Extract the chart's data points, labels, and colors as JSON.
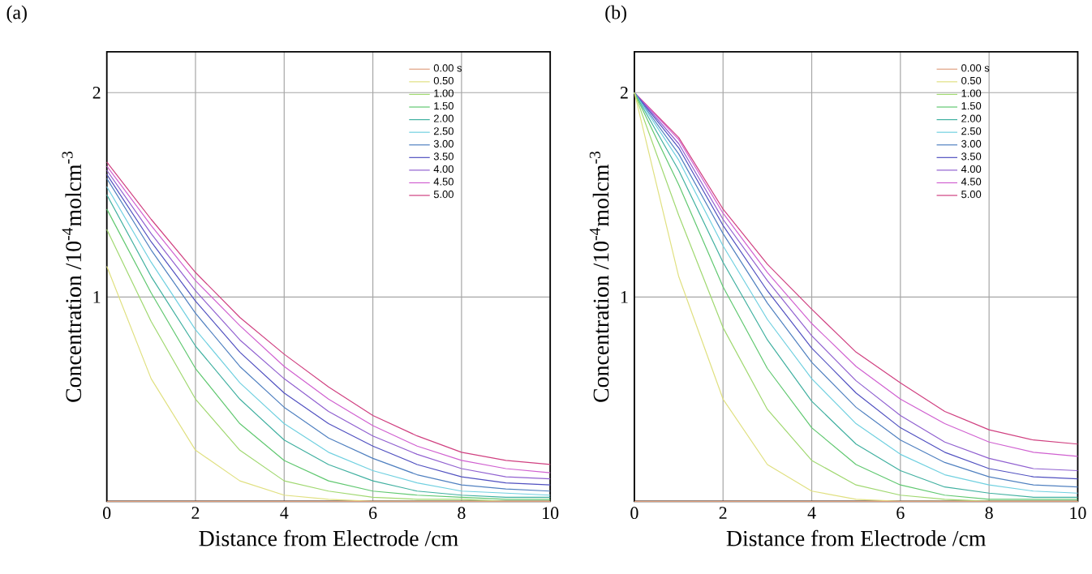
{
  "chart_data": [
    {
      "type": "line",
      "title": "(a)",
      "xlabel": "Distance from Electrode /cm",
      "ylabel": "Concentration /10$^{-4}$molcm$^{-3}$",
      "x": [
        0,
        1,
        2,
        3,
        4,
        5,
        6,
        7,
        8,
        9,
        10
      ],
      "xlim": [
        0,
        10
      ],
      "ylim": [
        0,
        2.2
      ],
      "xticks": [
        0,
        2,
        4,
        6,
        8,
        10
      ],
      "yticks": [
        1,
        2
      ],
      "grid": true,
      "legend": "top right",
      "marker": "none",
      "line_style": "solid",
      "series": [
        {
          "name": "0.00 s",
          "color": "#e0a080",
          "values": [
            0,
            0,
            0,
            0,
            0,
            0,
            0,
            0,
            0,
            0,
            0
          ]
        },
        {
          "name": "0.50",
          "color": "#e0e080",
          "values": [
            1.15,
            0.6,
            0.25,
            0.1,
            0.03,
            0.01,
            0,
            0,
            0,
            0,
            0
          ]
        },
        {
          "name": "1.00",
          "color": "#a0d870",
          "values": [
            1.33,
            0.88,
            0.5,
            0.25,
            0.1,
            0.05,
            0.02,
            0.01,
            0.01,
            0,
            0
          ]
        },
        {
          "name": "1.50",
          "color": "#60c870",
          "values": [
            1.43,
            1.02,
            0.65,
            0.38,
            0.2,
            0.1,
            0.05,
            0.03,
            0.02,
            0.01,
            0.01
          ]
        },
        {
          "name": "2.00",
          "color": "#40b0a0",
          "values": [
            1.5,
            1.1,
            0.76,
            0.5,
            0.3,
            0.18,
            0.1,
            0.05,
            0.03,
            0.02,
            0.02
          ]
        },
        {
          "name": "2.50",
          "color": "#70d0e0",
          "values": [
            1.54,
            1.17,
            0.84,
            0.58,
            0.38,
            0.24,
            0.15,
            0.09,
            0.05,
            0.04,
            0.03
          ]
        },
        {
          "name": "3.00",
          "color": "#5080c0",
          "values": [
            1.58,
            1.23,
            0.92,
            0.66,
            0.46,
            0.31,
            0.21,
            0.13,
            0.08,
            0.06,
            0.05
          ]
        },
        {
          "name": "3.50",
          "color": "#5050c0",
          "values": [
            1.6,
            1.27,
            0.98,
            0.73,
            0.53,
            0.38,
            0.27,
            0.18,
            0.12,
            0.09,
            0.08
          ]
        },
        {
          "name": "4.00",
          "color": "#9060d0",
          "values": [
            1.62,
            1.31,
            1.03,
            0.79,
            0.6,
            0.44,
            0.32,
            0.23,
            0.16,
            0.12,
            0.11
          ]
        },
        {
          "name": "4.50",
          "color": "#d060d0",
          "values": [
            1.64,
            1.35,
            1.08,
            0.86,
            0.66,
            0.5,
            0.37,
            0.27,
            0.2,
            0.16,
            0.14
          ]
        },
        {
          "name": "5.00",
          "color": "#d04080",
          "values": [
            1.66,
            1.38,
            1.12,
            0.9,
            0.72,
            0.56,
            0.42,
            0.32,
            0.24,
            0.2,
            0.18
          ]
        }
      ]
    },
    {
      "type": "line",
      "title": "(b)",
      "xlabel": "Distance from Electrode /cm",
      "ylabel": "Concentration /10$^{-4}$molcm$^{-3}$",
      "x": [
        0,
        1,
        2,
        3,
        4,
        5,
        6,
        7,
        8,
        9,
        10
      ],
      "xlim": [
        0,
        10
      ],
      "ylim": [
        0,
        2.2
      ],
      "xticks": [
        0,
        2,
        4,
        6,
        8,
        10
      ],
      "yticks": [
        1,
        2
      ],
      "grid": true,
      "legend": "top right",
      "marker": "none",
      "line_style": "solid",
      "series": [
        {
          "name": "0.00 s",
          "color": "#e0a080",
          "values": [
            0,
            0,
            0,
            0,
            0,
            0,
            0,
            0,
            0,
            0,
            0
          ]
        },
        {
          "name": "0.50",
          "color": "#e0e080",
          "values": [
            2.0,
            1.1,
            0.5,
            0.18,
            0.05,
            0.01,
            0,
            0,
            0,
            0,
            0
          ]
        },
        {
          "name": "1.00",
          "color": "#a0d870",
          "values": [
            2.0,
            1.4,
            0.85,
            0.45,
            0.2,
            0.08,
            0.03,
            0.01,
            0,
            0,
            0
          ]
        },
        {
          "name": "1.50",
          "color": "#60c870",
          "values": [
            2.0,
            1.55,
            1.05,
            0.65,
            0.36,
            0.18,
            0.08,
            0.03,
            0.01,
            0.01,
            0.01
          ]
        },
        {
          "name": "2.00",
          "color": "#40b0a0",
          "values": [
            2.0,
            1.62,
            1.17,
            0.79,
            0.49,
            0.28,
            0.15,
            0.07,
            0.04,
            0.02,
            0.02
          ]
        },
        {
          "name": "2.50",
          "color": "#70d0e0",
          "values": [
            2.0,
            1.67,
            1.25,
            0.89,
            0.6,
            0.38,
            0.23,
            0.13,
            0.08,
            0.05,
            0.04
          ]
        },
        {
          "name": "3.00",
          "color": "#5080c0",
          "values": [
            2.0,
            1.7,
            1.31,
            0.97,
            0.68,
            0.46,
            0.3,
            0.19,
            0.12,
            0.08,
            0.07
          ]
        },
        {
          "name": "3.50",
          "color": "#5050c0",
          "values": [
            2.0,
            1.73,
            1.35,
            1.03,
            0.75,
            0.53,
            0.36,
            0.24,
            0.16,
            0.12,
            0.11
          ]
        },
        {
          "name": "4.00",
          "color": "#9060d0",
          "values": [
            2.0,
            1.75,
            1.38,
            1.08,
            0.81,
            0.59,
            0.42,
            0.29,
            0.21,
            0.16,
            0.15
          ]
        },
        {
          "name": "4.50",
          "color": "#d060d0",
          "values": [
            2.0,
            1.77,
            1.41,
            1.12,
            0.87,
            0.66,
            0.5,
            0.38,
            0.29,
            0.24,
            0.22
          ]
        },
        {
          "name": "5.00",
          "color": "#d04080",
          "values": [
            2.0,
            1.78,
            1.43,
            1.16,
            0.94,
            0.73,
            0.58,
            0.44,
            0.35,
            0.3,
            0.28
          ]
        }
      ]
    }
  ]
}
